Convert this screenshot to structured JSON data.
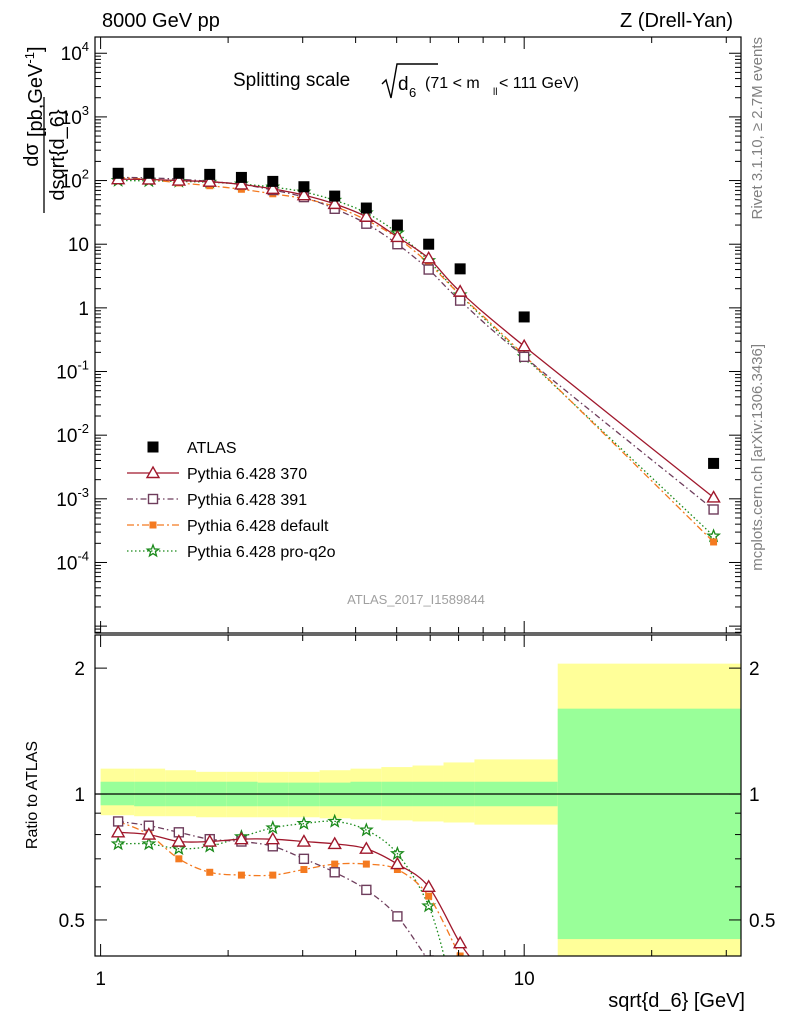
{
  "header": {
    "left": "8000 GeV pp",
    "right": "Z (Drell-Yan)"
  },
  "side_labels": {
    "rivet": "Rivet 3.1.10, ≥ 2.7M events",
    "mcplots": "mcplots.cern.ch [arXiv:1306.3436]"
  },
  "chart_data": [
    {
      "type": "scatter",
      "title_main": "Splitting scale",
      "title_var": "d",
      "title_var_sub": "6",
      "title_range_left": "(71 < m",
      "title_range_sub": "ll",
      "title_range_right": " < 111 GeV)",
      "ylabel_num": "dσ",
      "ylabel_den": "dsqrt{d_6}",
      "ylabel_unit": "[pb,GeV",
      "ylabel_unit_sup": "-1",
      "ylabel_unit_end": "]",
      "watermark": "ATLAS_2017_I1589844",
      "xscale": "log",
      "yscale": "log",
      "xlim": [
        0.97,
        32.5
      ],
      "ylim": [
        7.8e-06,
        18000
      ],
      "ytick_labels": [
        {
          "v": 0.0001,
          "base": "10",
          "exp": "-4"
        },
        {
          "v": 0.001,
          "base": "10",
          "exp": "-3"
        },
        {
          "v": 0.01,
          "base": "10",
          "exp": "-2"
        },
        {
          "v": 0.1,
          "base": "10",
          "exp": "-1"
        },
        {
          "v": 1,
          "base": "1",
          "exp": ""
        },
        {
          "v": 10,
          "base": "10",
          "exp": ""
        },
        {
          "v": 100,
          "base": "10",
          "exp": "2"
        },
        {
          "v": 1000,
          "base": "10",
          "exp": "3"
        },
        {
          "v": 10000,
          "base": "10",
          "exp": "4"
        }
      ],
      "series": [
        {
          "name": "ATLAS",
          "marker": "square-filled",
          "color": "#000000",
          "x": [
            1.1,
            1.3,
            1.53,
            1.81,
            2.15,
            2.55,
            3.02,
            3.57,
            4.24,
            5.02,
            5.95,
            7.06,
            10.0,
            28.0
          ],
          "y": [
            130,
            130,
            130,
            125,
            112,
            97,
            80,
            57,
            37,
            20,
            10,
            4.1,
            0.72,
            0.0036
          ]
        },
        {
          "name": "Pythia 6.428 370",
          "marker": "triangle-open",
          "color": "#a0182c",
          "dash": "",
          "x": [
            1.1,
            1.3,
            1.53,
            1.81,
            2.15,
            2.55,
            3.02,
            3.57,
            4.24,
            5.02,
            5.95,
            7.06,
            10.0,
            28.0
          ],
          "y": [
            105,
            104,
            100,
            96,
            87,
            74,
            59,
            43,
            27,
            13,
            6.0,
            1.8,
            0.25,
            0.00105
          ]
        },
        {
          "name": "Pythia 6.428 391",
          "marker": "square-open",
          "color": "#6e3d5c",
          "dash": "6,3,1.5,3",
          "x": [
            1.1,
            1.3,
            1.53,
            1.81,
            2.15,
            2.55,
            3.02,
            3.57,
            4.24,
            5.02,
            5.95,
            7.06,
            10.0,
            28.0
          ],
          "y": [
            112,
            110,
            105,
            97,
            87,
            71,
            55,
            36,
            21,
            10,
            4.0,
            1.3,
            0.17,
            0.00068
          ]
        },
        {
          "name": "Pythia 6.428 default",
          "marker": "square-filled-small",
          "color": "#f47a20",
          "dash": "7,3,2,3",
          "x": [
            1.1,
            1.3,
            1.53,
            1.81,
            2.15,
            2.55,
            3.02,
            3.57,
            4.24,
            5.02,
            5.95,
            7.06,
            10.0,
            28.0
          ],
          "y": [
            112,
            104,
            92,
            83,
            73,
            62,
            52,
            39,
            24,
            12.5,
            5.0,
            1.6,
            0.18,
            0.00021
          ]
        },
        {
          "name": "Pythia 6.428 pro-q2o",
          "marker": "star",
          "color": "#1a8a1a",
          "dash": "1.5,2.5",
          "x": [
            1.1,
            1.3,
            1.53,
            1.81,
            2.15,
            2.55,
            3.02,
            3.57,
            4.24,
            5.02,
            5.95,
            7.06,
            10.0,
            28.0
          ],
          "y": [
            100,
            99,
            97,
            94,
            88,
            79,
            66,
            49,
            31,
            15,
            5.5,
            1.6,
            0.17,
            0.00026
          ]
        }
      ]
    },
    {
      "type": "scatter",
      "ylabel": "Ratio to ATLAS",
      "xlabel": "sqrt{d_6} [GeV]",
      "xscale": "log",
      "yscale": "log",
      "xlim": [
        0.97,
        32.5
      ],
      "ylim": [
        0.41,
        2.4
      ],
      "xtick_labels": [
        {
          "v": 1,
          "t": "1"
        },
        {
          "v": 10,
          "t": "10"
        }
      ],
      "ytick_labels": [
        {
          "v": 0.5,
          "t": "0.5"
        },
        {
          "v": 1,
          "t": "1"
        },
        {
          "v": 2,
          "t": "2"
        }
      ],
      "bands": {
        "edges": [
          1.0,
          1.2,
          1.42,
          1.68,
          1.98,
          2.35,
          2.78,
          3.29,
          3.89,
          4.6,
          5.45,
          6.45,
          7.63,
          12.0,
          32.5
        ],
        "yellow_lo": [
          0.89,
          0.885,
          0.885,
          0.88,
          0.88,
          0.88,
          0.88,
          0.875,
          0.87,
          0.865,
          0.86,
          0.855,
          0.845,
          0.41
        ],
        "yellow_hi": [
          1.15,
          1.15,
          1.14,
          1.13,
          1.13,
          1.13,
          1.13,
          1.14,
          1.15,
          1.16,
          1.17,
          1.19,
          1.21,
          2.05
        ],
        "green_lo": [
          0.94,
          0.935,
          0.935,
          0.935,
          0.935,
          0.935,
          0.935,
          0.935,
          0.935,
          0.935,
          0.935,
          0.935,
          0.935,
          0.45
        ],
        "green_hi": [
          1.07,
          1.07,
          1.07,
          1.07,
          1.07,
          1.065,
          1.065,
          1.065,
          1.07,
          1.07,
          1.07,
          1.07,
          1.07,
          1.6
        ]
      },
      "series": [
        {
          "name": "Pythia 6.428 370",
          "marker": "triangle-open",
          "color": "#a0182c",
          "dash": "",
          "x": [
            1.1,
            1.3,
            1.53,
            1.81,
            2.15,
            2.55,
            3.02,
            3.57,
            4.24,
            5.02,
            5.95,
            7.06,
            7.9
          ],
          "y": [
            0.81,
            0.8,
            0.77,
            0.77,
            0.78,
            0.78,
            0.77,
            0.76,
            0.74,
            0.68,
            0.6,
            0.44,
            0.38
          ]
        },
        {
          "name": "Pythia 6.428 391",
          "marker": "square-open",
          "color": "#6e3d5c",
          "dash": "6,3,1.5,3",
          "x": [
            1.1,
            1.3,
            1.53,
            1.81,
            2.15,
            2.55,
            3.02,
            3.57,
            4.24,
            5.02,
            5.95,
            6.3
          ],
          "y": [
            0.86,
            0.84,
            0.81,
            0.78,
            0.77,
            0.75,
            0.7,
            0.65,
            0.59,
            0.51,
            0.4,
            0.38
          ]
        },
        {
          "name": "Pythia 6.428 default",
          "marker": "square-filled-small",
          "color": "#f47a20",
          "dash": "7,3,2,3",
          "x": [
            1.1,
            1.3,
            1.53,
            1.81,
            2.15,
            2.55,
            3.02,
            3.57,
            4.24,
            5.02,
            5.95,
            7.06,
            7.5
          ],
          "y": [
            0.86,
            0.8,
            0.7,
            0.65,
            0.64,
            0.64,
            0.66,
            0.68,
            0.68,
            0.66,
            0.57,
            0.41,
            0.38
          ]
        },
        {
          "name": "Pythia 6.428 pro-q2o",
          "marker": "star",
          "color": "#1a8a1a",
          "dash": "1.5,2.5",
          "x": [
            1.1,
            1.3,
            1.53,
            1.81,
            2.15,
            2.55,
            3.02,
            3.57,
            4.24,
            5.02,
            5.95,
            6.6
          ],
          "y": [
            0.76,
            0.76,
            0.74,
            0.75,
            0.79,
            0.83,
            0.85,
            0.86,
            0.82,
            0.72,
            0.54,
            0.38
          ]
        }
      ]
    }
  ]
}
